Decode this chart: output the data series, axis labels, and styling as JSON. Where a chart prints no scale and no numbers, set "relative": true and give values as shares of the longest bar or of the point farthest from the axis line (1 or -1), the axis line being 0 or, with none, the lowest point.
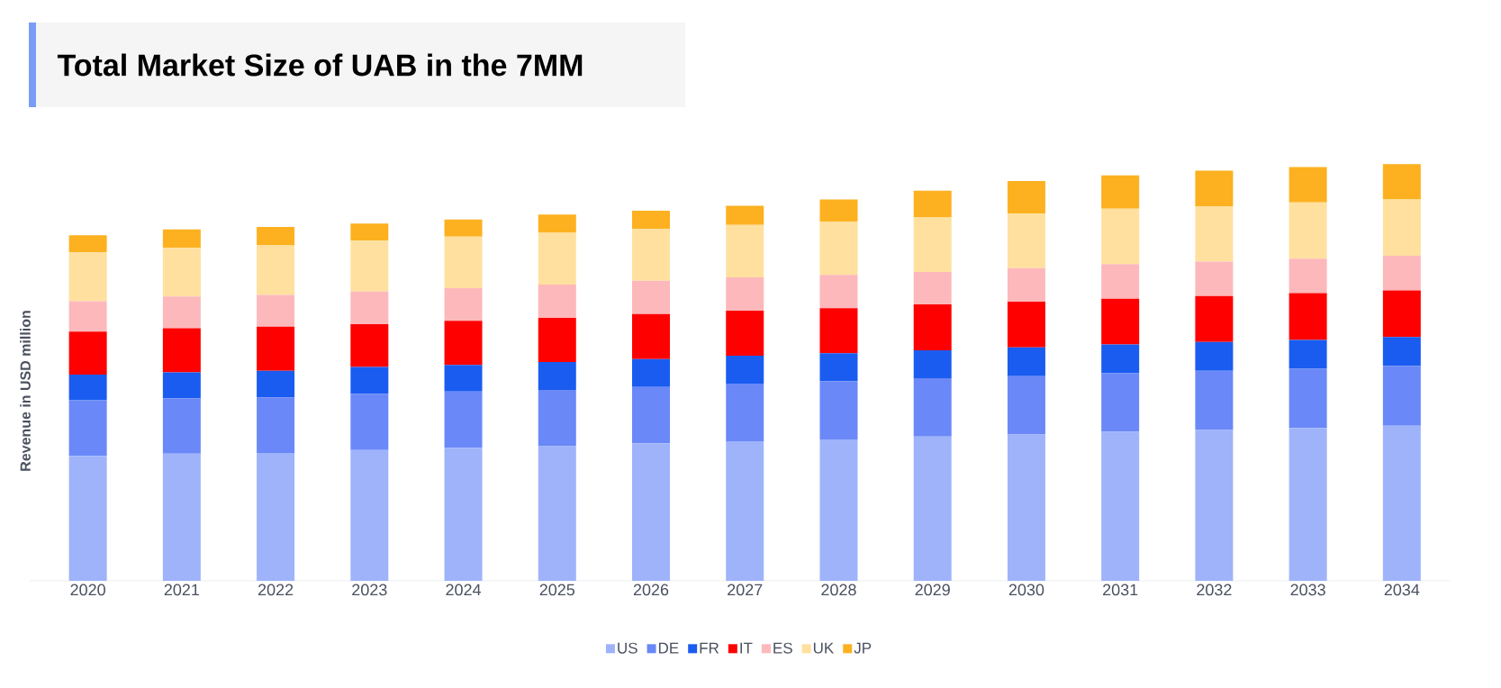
{
  "chart_data": {
    "type": "bar",
    "title": "Total Market Size of UAB in the 7MM",
    "ylabel": "Revenue in USD million",
    "categories": [
      "2020",
      "2021",
      "2022",
      "2023",
      "2024",
      "2025",
      "2026",
      "2027",
      "2028",
      "2029",
      "2030",
      "2031",
      "2032",
      "2033",
      "2034"
    ],
    "stacked": true,
    "relative": true,
    "legend": "bottom",
    "series": [
      {
        "name": "US",
        "color": "#9fb3fb",
        "values": [
          0.3,
          0.305,
          0.307,
          0.314,
          0.319,
          0.323,
          0.33,
          0.335,
          0.339,
          0.346,
          0.351,
          0.358,
          0.362,
          0.367,
          0.372
        ]
      },
      {
        "name": "DE",
        "color": "#6a88f7",
        "values": [
          0.133,
          0.133,
          0.133,
          0.135,
          0.135,
          0.135,
          0.135,
          0.138,
          0.14,
          0.14,
          0.14,
          0.14,
          0.142,
          0.142,
          0.144
        ]
      },
      {
        "name": "FR",
        "color": "#1a5cf0",
        "values": [
          0.062,
          0.062,
          0.064,
          0.064,
          0.064,
          0.067,
          0.067,
          0.067,
          0.067,
          0.067,
          0.069,
          0.069,
          0.069,
          0.069,
          0.069
        ]
      },
      {
        "name": "IT",
        "color": "#ff0000",
        "values": [
          0.103,
          0.106,
          0.106,
          0.103,
          0.106,
          0.106,
          0.108,
          0.108,
          0.108,
          0.11,
          0.11,
          0.11,
          0.11,
          0.112,
          0.112
        ]
      },
      {
        "name": "ES",
        "color": "#fdb8bb",
        "values": [
          0.073,
          0.076,
          0.076,
          0.078,
          0.078,
          0.08,
          0.08,
          0.08,
          0.08,
          0.078,
          0.08,
          0.083,
          0.083,
          0.083,
          0.083
        ]
      },
      {
        "name": "UK",
        "color": "#ffe09e",
        "values": [
          0.117,
          0.117,
          0.119,
          0.122,
          0.124,
          0.124,
          0.124,
          0.126,
          0.128,
          0.131,
          0.131,
          0.133,
          0.133,
          0.135,
          0.135
        ]
      },
      {
        "name": "JP",
        "color": "#fdb120",
        "values": [
          0.041,
          0.044,
          0.044,
          0.041,
          0.041,
          0.044,
          0.044,
          0.046,
          0.053,
          0.064,
          0.078,
          0.08,
          0.085,
          0.085,
          0.085
        ]
      }
    ]
  }
}
